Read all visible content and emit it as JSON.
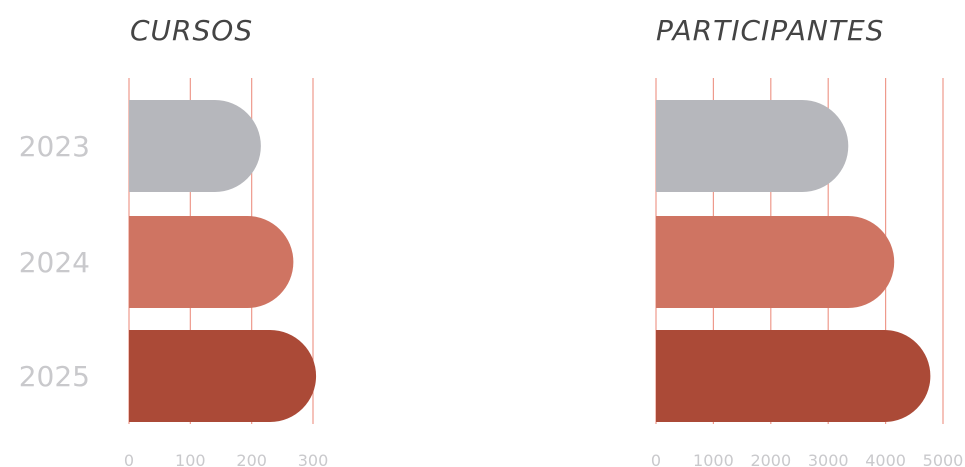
{
  "chart_data": [
    {
      "type": "bar",
      "orientation": "horizontal",
      "title": "CURSOS",
      "xlabel": "",
      "ylabel": "",
      "categories": [
        "2023",
        "2024",
        "2025"
      ],
      "values": [
        215,
        268,
        305
      ],
      "xlim": [
        0,
        300
      ],
      "xticks": [
        "0",
        "100",
        "200",
        "300"
      ],
      "grid": true,
      "colors": [
        "#b6b7bc",
        "#cf7462",
        "#ab4a37"
      ]
    },
    {
      "type": "bar",
      "orientation": "horizontal",
      "title": "PARTICIPANTES",
      "xlabel": "",
      "ylabel": "",
      "categories": [
        "2023",
        "2024",
        "2025"
      ],
      "values": [
        3350,
        4150,
        4780
      ],
      "xlim": [
        0,
        5000
      ],
      "xticks": [
        "0",
        "1000",
        "2000",
        "3000",
        "4000",
        "5000"
      ],
      "grid": true,
      "colors": [
        "#b6b7bc",
        "#cf7462",
        "#ab4a37"
      ]
    }
  ]
}
